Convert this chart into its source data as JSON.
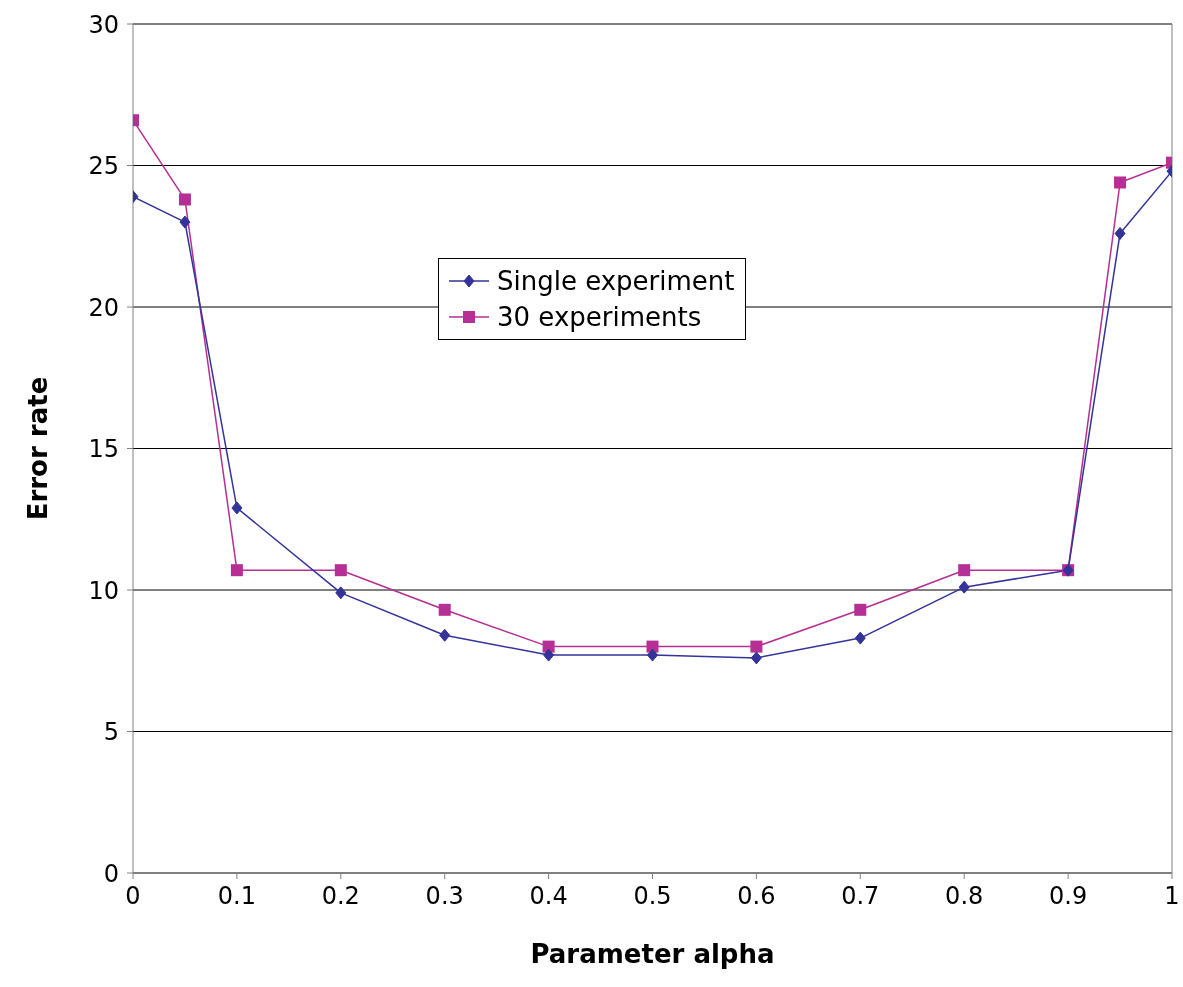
{
  "chart_data": {
    "type": "line",
    "xlabel": "Parameter alpha",
    "ylabel": "Error rate",
    "x": [
      0,
      0.05,
      0.1,
      0.2,
      0.3,
      0.4,
      0.5,
      0.6,
      0.7,
      0.8,
      0.9,
      0.95,
      1
    ],
    "series": [
      {
        "name": "Single experiment",
        "color": "#333399",
        "marker": "diamond",
        "values": [
          23.9,
          23.0,
          12.9,
          9.9,
          8.4,
          7.7,
          7.7,
          7.6,
          8.3,
          10.1,
          10.7,
          22.6,
          24.8
        ]
      },
      {
        "name": "30 experiments",
        "color": "#b52f95",
        "marker": "square",
        "values": [
          26.6,
          23.8,
          10.7,
          10.7,
          9.3,
          8.0,
          8.0,
          8.0,
          9.3,
          10.7,
          10.7,
          24.4,
          25.1
        ]
      }
    ],
    "xlim": [
      0,
      1
    ],
    "xticks": [
      0,
      0.1,
      0.2,
      0.3,
      0.4,
      0.5,
      0.6,
      0.7,
      0.8,
      0.9,
      1
    ],
    "ylim": [
      0,
      30
    ],
    "yticks": [
      0,
      5,
      10,
      15,
      20,
      25,
      30
    ],
    "grid": "y",
    "legend": "top",
    "line_style": "solid"
  }
}
